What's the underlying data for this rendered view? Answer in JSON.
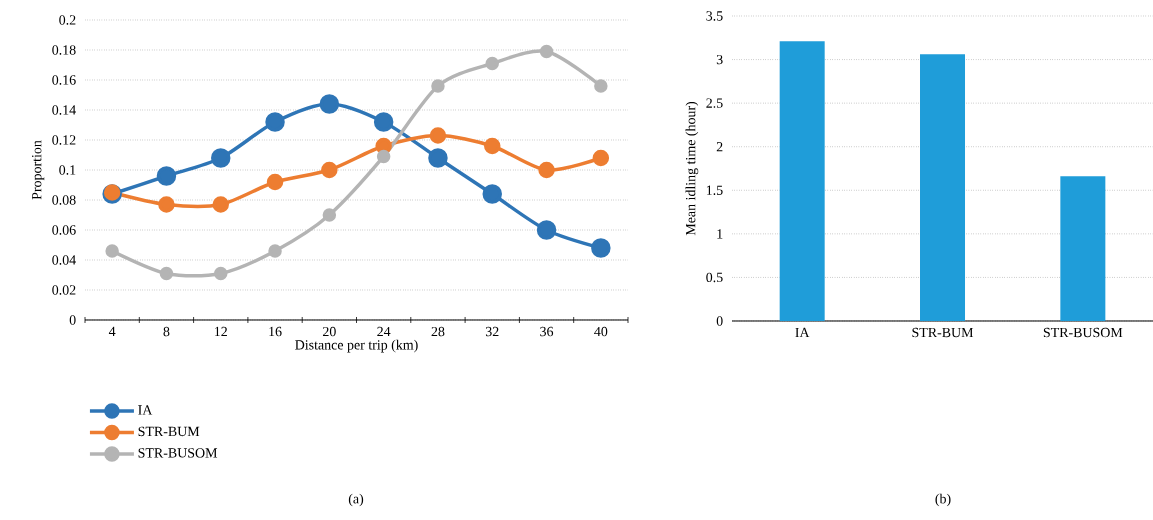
{
  "chart_data": [
    {
      "type": "line",
      "xlabel": "Distance per trip (km)",
      "ylabel": "Proportion",
      "categories": [
        "4",
        "8",
        "12",
        "16",
        "20",
        "24",
        "28",
        "32",
        "36",
        "40"
      ],
      "series": [
        {
          "name": "IA",
          "color": "#2e75b6",
          "values": [
            0.084,
            0.096,
            0.108,
            0.132,
            0.144,
            0.132,
            0.108,
            0.084,
            0.06,
            0.048
          ]
        },
        {
          "name": "STR-BUM",
          "color": "#ed7d31",
          "values": [
            0.085,
            0.077,
            0.077,
            0.092,
            0.1,
            0.116,
            0.123,
            0.116,
            0.1,
            0.108
          ]
        },
        {
          "name": "STR-BUSOM",
          "color": "#b4b4b4",
          "values": [
            0.046,
            0.031,
            0.031,
            0.046,
            0.07,
            0.109,
            0.156,
            0.171,
            0.179,
            0.156
          ]
        }
      ],
      "ylim": [
        0,
        0.2
      ],
      "yticks": [
        0,
        0.02,
        0.04,
        0.06,
        0.08,
        0.1,
        0.12,
        0.14,
        0.16,
        0.18,
        0.2
      ],
      "grid": "y",
      "legend": "bottom left",
      "marker": "circle",
      "line_style": "solid",
      "annotations": [
        "(a)"
      ]
    },
    {
      "type": "bar",
      "ylabel": "Mean idling time (hour)",
      "categories": [
        "IA",
        "STR-BUM",
        "STR-BUSOM"
      ],
      "values": [
        3.21,
        3.06,
        1.66
      ],
      "color": "#1f9dd9",
      "ylim": [
        0,
        3.5
      ],
      "yticks": [
        0,
        0.5,
        1,
        1.5,
        2,
        2.5,
        3,
        3.5
      ],
      "grid": "y",
      "annotations": [
        "(b)"
      ]
    }
  ]
}
